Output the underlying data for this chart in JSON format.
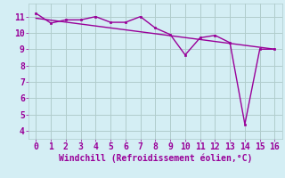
{
  "xlabel": "Windchill (Refroidissement éolien,°C)",
  "xlim": [
    -0.5,
    16.5
  ],
  "ylim": [
    3.5,
    11.8
  ],
  "yticks": [
    4,
    5,
    6,
    7,
    8,
    9,
    10,
    11
  ],
  "xticks": [
    0,
    1,
    2,
    3,
    4,
    5,
    6,
    7,
    8,
    9,
    10,
    11,
    12,
    13,
    14,
    15,
    16
  ],
  "bg_color": "#d4eef4",
  "line_color": "#990099",
  "line1_x": [
    0,
    1,
    2,
    3,
    4,
    5,
    6,
    7,
    8,
    9,
    10,
    11,
    12,
    13,
    14,
    15,
    16
  ],
  "line1_y": [
    11.2,
    10.6,
    10.8,
    10.8,
    11.0,
    10.65,
    10.65,
    11.0,
    10.3,
    9.9,
    8.65,
    9.7,
    9.85,
    9.4,
    4.4,
    9.0,
    9.0
  ],
  "line2_x": [
    0,
    16
  ],
  "line2_y": [
    10.9,
    9.0
  ],
  "grid_color": "#b0cccc",
  "font_color": "#990099",
  "font_family": "monospace",
  "xlabel_fontsize": 7,
  "tick_fontsize": 7
}
